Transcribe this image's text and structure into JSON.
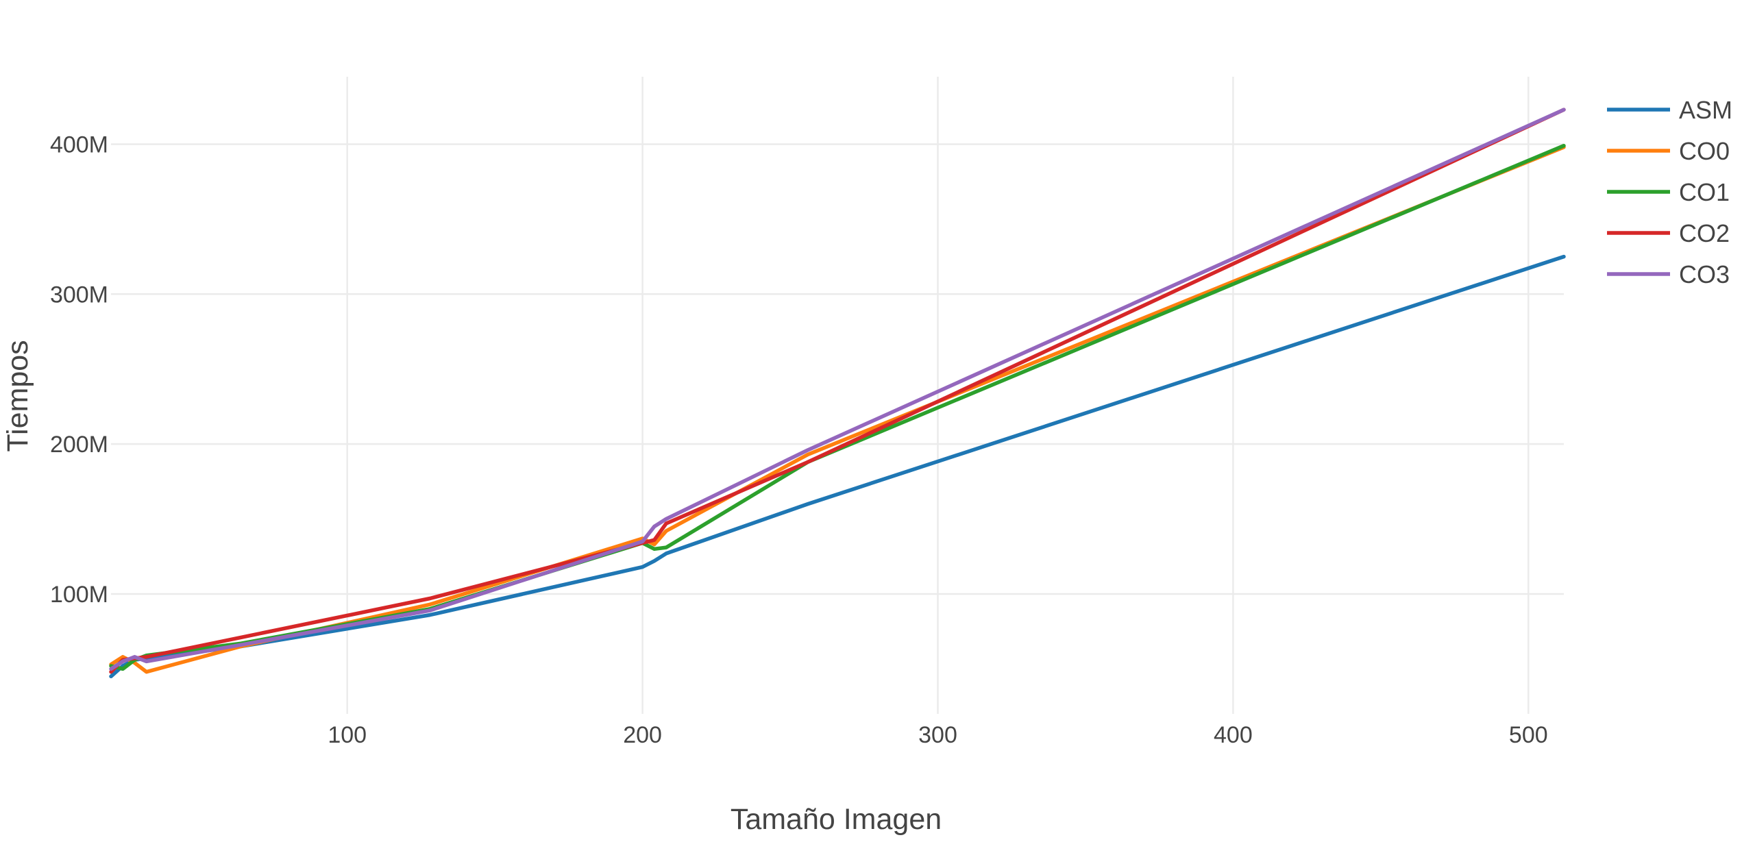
{
  "chart_data": {
    "type": "line",
    "title": "",
    "xlabel": "Tamaño Imagen",
    "ylabel": "Tiempos",
    "xlim": [
      20,
      512
    ],
    "ylim": [
      20000000,
      445000000
    ],
    "x_ticks": [
      100,
      200,
      300,
      400,
      500
    ],
    "x_tick_labels": [
      "100",
      "200",
      "300",
      "400",
      "500"
    ],
    "y_ticks": [
      100000000,
      200000000,
      300000000,
      400000000
    ],
    "y_tick_labels": [
      "100M",
      "200M",
      "300M",
      "400M"
    ],
    "grid": true,
    "legend_position": "top-right",
    "series": [
      {
        "name": "ASM",
        "color": "#1f77b4",
        "x": [
          20,
          24,
          28,
          32,
          64,
          128,
          200,
          204,
          208,
          256,
          512
        ],
        "y": [
          45000000,
          52000000,
          56000000,
          57000000,
          65000000,
          86000000,
          118000000,
          122000000,
          127000000,
          160000000,
          325000000
        ]
      },
      {
        "name": "CO0",
        "color": "#ff7f0e",
        "x": [
          20,
          24,
          28,
          32,
          64,
          128,
          200,
          204,
          208,
          256,
          512
        ],
        "y": [
          53000000,
          58000000,
          54000000,
          48000000,
          65000000,
          93000000,
          137000000,
          133000000,
          142000000,
          193000000,
          398000000
        ]
      },
      {
        "name": "CO1",
        "color": "#2ca02c",
        "x": [
          20,
          24,
          28,
          32,
          64,
          128,
          200,
          204,
          208,
          256,
          512
        ],
        "y": [
          52000000,
          50000000,
          56000000,
          59000000,
          67000000,
          90000000,
          134000000,
          130000000,
          131000000,
          188000000,
          399000000
        ]
      },
      {
        "name": "CO2",
        "color": "#d62728",
        "x": [
          20,
          24,
          28,
          32,
          64,
          128,
          200,
          204,
          208,
          256,
          512
        ],
        "y": [
          48000000,
          56000000,
          57000000,
          58000000,
          71000000,
          97000000,
          134000000,
          136000000,
          147000000,
          188000000,
          423000000
        ]
      },
      {
        "name": "CO3",
        "color": "#9467bd",
        "x": [
          20,
          24,
          28,
          32,
          64,
          128,
          200,
          204,
          208,
          256,
          512
        ],
        "y": [
          50000000,
          55000000,
          58000000,
          55000000,
          66000000,
          89000000,
          135000000,
          145000000,
          150000000,
          196000000,
          423000000
        ]
      }
    ]
  }
}
